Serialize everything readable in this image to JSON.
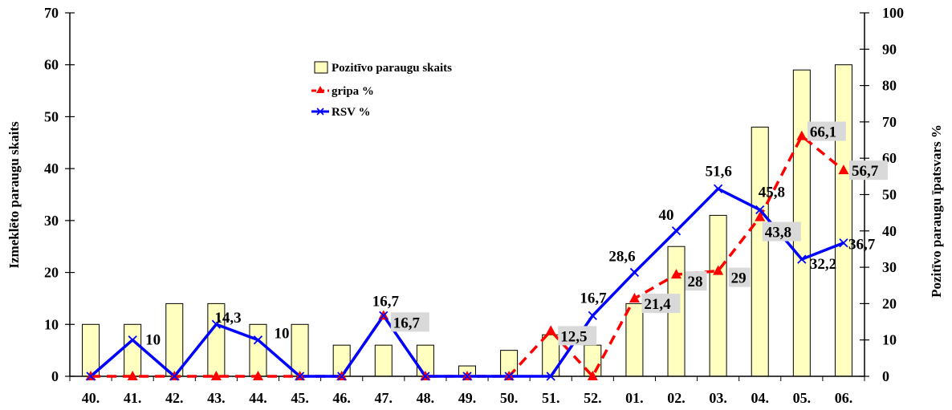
{
  "chart_data": {
    "type": "bar+line",
    "categories": [
      "40.",
      "41.",
      "42.",
      "43.",
      "44.",
      "45.",
      "46.",
      "47.",
      "48.",
      "49.",
      "50.",
      "51.",
      "52.",
      "01.",
      "02.",
      "03.",
      "04.",
      "05.",
      "06."
    ],
    "bars": {
      "name": "Pozitīvo paraugu skaits",
      "values": [
        10,
        10,
        14,
        14,
        10,
        10,
        6,
        6,
        6,
        2,
        5,
        8,
        6,
        14,
        25,
        31,
        48,
        59,
        60
      ],
      "axis": "left",
      "color": "#FFFFC0"
    },
    "series": [
      {
        "name": "gripa %",
        "axis": "right",
        "color": "#FF0000",
        "style": "dashed",
        "marker": "triangle",
        "values": [
          0,
          0,
          0,
          0,
          0,
          0,
          0,
          16.7,
          0,
          0,
          0,
          12.5,
          0,
          21.4,
          28,
          29,
          43.8,
          66.1,
          56.7
        ],
        "labels": [
          "",
          "",
          "",
          "",
          "",
          "",
          "",
          "16,7",
          "",
          "",
          "",
          "12,5",
          "",
          "21,4",
          "28",
          "29",
          "43,8",
          "66,1",
          "56,7"
        ]
      },
      {
        "name": "RSV %",
        "axis": "right",
        "color": "#0000FF",
        "style": "solid",
        "marker": "x",
        "values": [
          0,
          10,
          0,
          14.3,
          10,
          0,
          0,
          16.7,
          0,
          0,
          0,
          0,
          16.7,
          28.6,
          40,
          51.6,
          45.8,
          32.2,
          36.7
        ],
        "labels": [
          "",
          "10",
          "",
          "14,3",
          "10",
          "",
          "",
          "16,7",
          "",
          "",
          "",
          "",
          "16,7",
          "28,6",
          "40",
          "51,6",
          "45,8",
          "32,2",
          "36,7"
        ]
      }
    ],
    "ylabel_left": "Izmeklēto paraugu skaits",
    "ylabel_right": "Pozitīvo paraugu īpatsvars %",
    "ylim_left": [
      0,
      70
    ],
    "yticks_left": [
      "0",
      "10",
      "20",
      "30",
      "40",
      "50",
      "60",
      "70"
    ],
    "ylim_right": [
      0,
      100
    ],
    "yticks_right": [
      "0",
      "10",
      "20",
      "30",
      "40",
      "50",
      "60",
      "70",
      "80",
      "90",
      "100"
    ],
    "grid": false,
    "legend_position": "top-center"
  }
}
